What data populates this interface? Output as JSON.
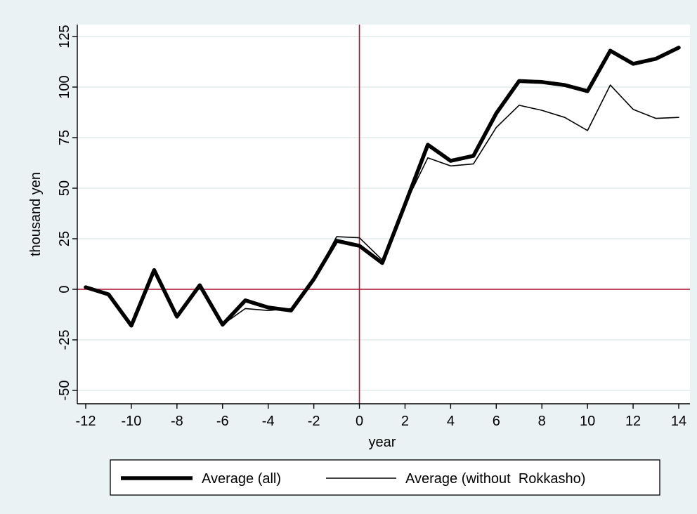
{
  "chart_data": {
    "type": "line",
    "xlabel": "year",
    "ylabel": "thousand yen",
    "xlim": [
      -12,
      14
    ],
    "ylim": [
      -50,
      125
    ],
    "x_ticks": [
      -12,
      -10,
      -8,
      -6,
      -4,
      -2,
      0,
      2,
      4,
      6,
      8,
      10,
      12,
      14
    ],
    "y_ticks": [
      -50,
      -25,
      0,
      25,
      50,
      75,
      100,
      125
    ],
    "x_tick_labels": [
      "-12",
      "-10",
      "-8",
      "-6",
      "-4",
      "-2",
      "0",
      "2",
      "4",
      "6",
      "8",
      "10",
      "12",
      "14"
    ],
    "y_tick_labels": [
      "-50",
      "-25",
      "0",
      "25",
      "50",
      "75",
      "100",
      "125"
    ],
    "grid": true,
    "reference_lines": {
      "x": 0,
      "y": 0,
      "color": "#b01030"
    },
    "legend_position": "bottom",
    "x": [
      -12,
      -11,
      -10,
      -9,
      -8,
      -7,
      -6,
      -5,
      -4,
      -3,
      -2,
      -1,
      0,
      1,
      2,
      3,
      4,
      5,
      6,
      7,
      8,
      9,
      10,
      11,
      12,
      13,
      14
    ],
    "series": [
      {
        "name": "Average (all)",
        "style": "thick",
        "color": "#000000",
        "values": [
          1,
          -2.5,
          -18,
          9.5,
          -13.5,
          2,
          -17.5,
          -5.5,
          -9,
          -10.5,
          5,
          24,
          21.5,
          13,
          42,
          71.5,
          63.5,
          66,
          87,
          103,
          102.5,
          101,
          98,
          118,
          111.5,
          114,
          119.5
        ]
      },
      {
        "name": "Average (without  Rokkasho)",
        "style": "thin",
        "color": "#000000",
        "values": [
          1,
          -2.5,
          -18,
          9.5,
          -13.5,
          2,
          -17.5,
          -9.5,
          -10.5,
          -9.5,
          5,
          26,
          25.5,
          14.5,
          42,
          65,
          61,
          62,
          80,
          91,
          88.5,
          85,
          78.5,
          101,
          89,
          84.5,
          85
        ]
      }
    ]
  }
}
